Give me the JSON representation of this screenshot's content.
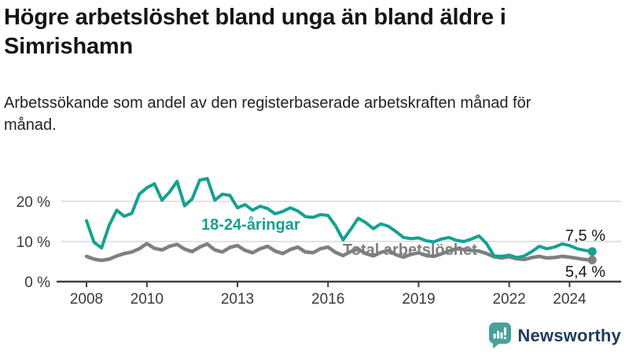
{
  "header": {
    "title": "Högre arbetslöshet bland unga än bland äldre i Simrishamn",
    "subtitle": "Arbetssökande som andel av den registerbaserade arbetskraften månad för månad."
  },
  "chart_data": {
    "type": "line",
    "unit": "%",
    "grid": true,
    "x_axis": {
      "ticks": [
        2008,
        2010,
        2013,
        2016,
        2019,
        2022,
        2024
      ],
      "range_years": [
        2008,
        2024.75
      ]
    },
    "y_axis": {
      "ticks": [
        0,
        10,
        20
      ],
      "tick_labels": [
        "0 %",
        "10 %",
        "20 %"
      ],
      "range": [
        0,
        27
      ]
    },
    "x": [
      2008.0,
      2008.25,
      2008.5,
      2008.75,
      2009.0,
      2009.25,
      2009.5,
      2009.75,
      2010.0,
      2010.25,
      2010.5,
      2010.75,
      2011.0,
      2011.25,
      2011.5,
      2011.75,
      2012.0,
      2012.25,
      2012.5,
      2012.75,
      2013.0,
      2013.25,
      2013.5,
      2013.75,
      2014.0,
      2014.25,
      2014.5,
      2014.75,
      2015.0,
      2015.25,
      2015.5,
      2015.75,
      2016.0,
      2016.25,
      2016.5,
      2016.75,
      2017.0,
      2017.25,
      2017.5,
      2017.75,
      2018.0,
      2018.25,
      2018.5,
      2018.75,
      2019.0,
      2019.25,
      2019.5,
      2019.75,
      2020.0,
      2020.25,
      2020.5,
      2020.75,
      2021.0,
      2021.25,
      2021.5,
      2021.75,
      2022.0,
      2022.25,
      2022.5,
      2022.75,
      2023.0,
      2023.25,
      2023.5,
      2023.75,
      2024.0,
      2024.25,
      2024.5,
      2024.75
    ],
    "series": [
      {
        "name": "Total arbetslöshet",
        "color": "#7f7f7f",
        "end_label": "5,4 %",
        "end_value": 5.4,
        "values": [
          6.3,
          5.6,
          5.3,
          5.6,
          6.4,
          7.0,
          7.4,
          8.2,
          9.5,
          8.3,
          7.9,
          8.8,
          9.3,
          8.1,
          7.5,
          8.6,
          9.4,
          7.9,
          7.4,
          8.5,
          9.0,
          7.8,
          7.2,
          8.2,
          8.8,
          7.6,
          7.0,
          8.0,
          8.6,
          7.4,
          7.2,
          8.2,
          8.6,
          7.3,
          6.5,
          7.5,
          8.1,
          7.0,
          6.4,
          7.3,
          7.8,
          6.7,
          6.1,
          6.8,
          7.2,
          6.5,
          6.3,
          6.9,
          7.6,
          8.2,
          8.0,
          7.8,
          7.6,
          7.0,
          6.2,
          5.9,
          6.2,
          5.7,
          5.5,
          6.0,
          6.3,
          5.9,
          6.0,
          6.3,
          6.1,
          5.8,
          5.5,
          5.4
        ]
      },
      {
        "name": "18-24-åringar",
        "color": "#14a191",
        "end_label": "7,5 %",
        "end_value": 7.5,
        "values": [
          15.2,
          9.8,
          8.4,
          14.0,
          17.8,
          16.3,
          17.0,
          21.8,
          23.4,
          24.4,
          20.3,
          22.3,
          25.0,
          18.9,
          20.6,
          25.3,
          25.7,
          20.3,
          21.8,
          21.5,
          18.4,
          19.2,
          17.8,
          18.8,
          18.2,
          16.9,
          17.5,
          18.4,
          17.6,
          16.2,
          16.0,
          16.7,
          16.5,
          13.9,
          10.4,
          13.0,
          15.8,
          14.7,
          13.2,
          14.4,
          13.8,
          12.5,
          11.0,
          10.7,
          10.9,
          10.2,
          9.9,
          10.6,
          11.0,
          10.3,
          10.0,
          10.6,
          11.4,
          9.5,
          6.4,
          6.3,
          6.6,
          6.0,
          6.4,
          7.5,
          8.8,
          8.2,
          8.6,
          9.4,
          9.0,
          8.2,
          7.8,
          7.5
        ]
      }
    ]
  },
  "branding": {
    "logo_text": "Newsworthy",
    "logo_text_color": "#1d3c5c",
    "icon": "bar-chart-speech-bubble",
    "icon_color": "#48a19c"
  }
}
